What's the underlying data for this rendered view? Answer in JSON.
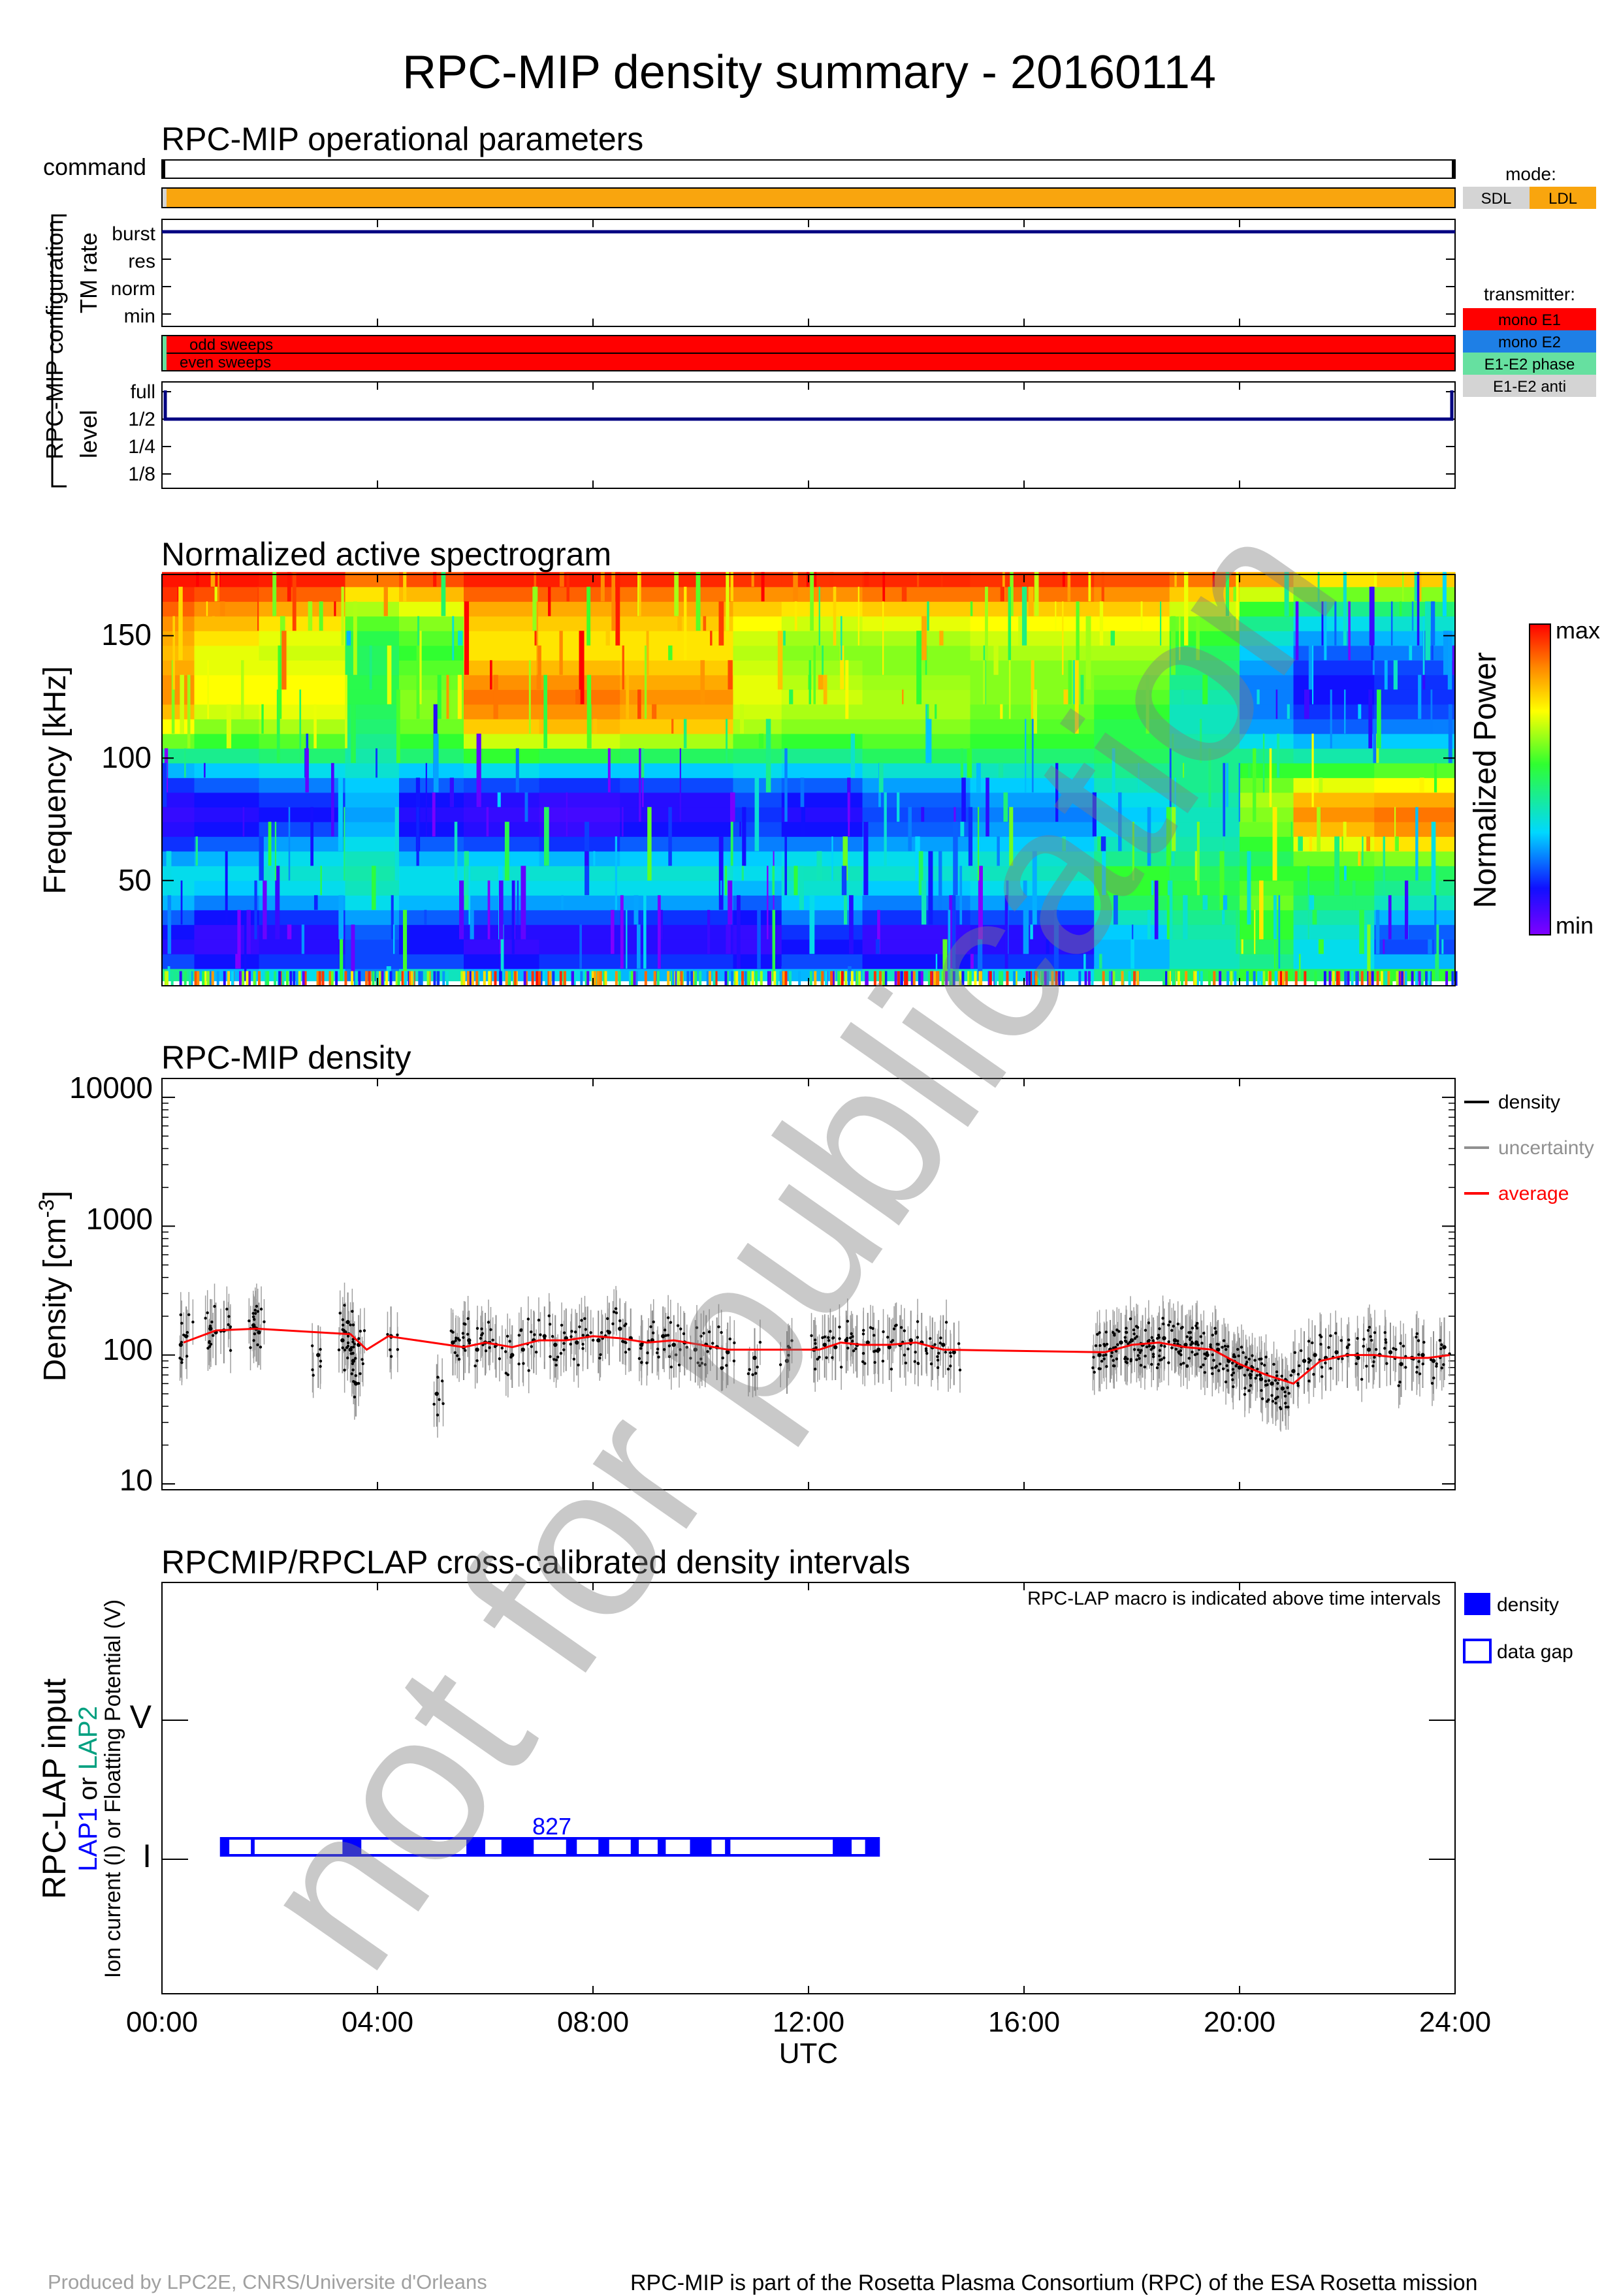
{
  "title": "RPC-MIP density summary - 20160114",
  "watermark": "not for publication",
  "colors": {
    "orange": "#F9A50E",
    "red": "#FF0000",
    "blue_e2": "#1E7FE6",
    "green_phase": "#66E0A0",
    "gray": "#D4D4D4",
    "navy": "#000080",
    "lap_blue": "#0000FF",
    "lap2_teal": "#00A080"
  },
  "operational": {
    "title": "RPC-MIP operational parameters",
    "command_label": "command",
    "config_label": "RPC-MIP configuration",
    "tm_rate_label": "TM rate",
    "level_label": "level",
    "tm_rate_ticks": [
      "burst",
      "res",
      "norm",
      "min"
    ],
    "tm_rate_value": "burst",
    "sweep_labels": [
      "odd sweeps",
      "even sweeps"
    ],
    "level_ticks": [
      "full",
      "1/2",
      "1/4",
      "1/8"
    ],
    "level_value": "1/2",
    "mode_legend": {
      "title": "mode:",
      "items": [
        {
          "label": "SDL",
          "color": "#D4D4D4"
        },
        {
          "label": "LDL",
          "color": "#F9A50E"
        }
      ]
    },
    "transmitter_legend": {
      "title": "transmitter:",
      "items": [
        {
          "label": "mono E1",
          "color": "#FF0000"
        },
        {
          "label": "mono E2",
          "color": "#1E7FE6"
        },
        {
          "label": "E1-E2 phase",
          "color": "#66E0A0"
        },
        {
          "label": "E1-E2 anti",
          "color": "#D4D4D4"
        }
      ]
    }
  },
  "spectrogram": {
    "title": "Normalized active spectrogram",
    "ylabel": "Frequency [kHz]",
    "yticks": [
      "150",
      "100",
      "50"
    ],
    "colorbar_label": "Normalized Power",
    "colorbar_max": "max",
    "colorbar_min": "min"
  },
  "density": {
    "title": "RPC-MIP density",
    "ylabel": "Density [cm",
    "ylabel_exp": "-3",
    "ylabel_end": "]",
    "yticks": [
      "10000",
      "1000",
      "100",
      "10"
    ],
    "legend": [
      {
        "label": "density",
        "color": "#000000"
      },
      {
        "label": "uncertainty",
        "color": "#909090"
      },
      {
        "label": "average",
        "color": "#FF0000"
      }
    ]
  },
  "lap": {
    "title": "RPCMIP/RPCLAP cross-calibrated density intervals",
    "note": "RPC-LAP macro is indicated above time intervals",
    "ylabel1": "RPC-LAP input",
    "ylabel2_lap1": "LAP1",
    "ylabel2_or": " or ",
    "ylabel2_lap2": "LAP2",
    "ylabel3": "Ion current (I) or Floatting Potential (V)",
    "yticks": [
      "V",
      "I"
    ],
    "macro": "827",
    "legend": [
      {
        "label": "density",
        "filled": true
      },
      {
        "label": "data gap",
        "filled": false
      }
    ]
  },
  "xaxis": {
    "ticks": [
      "00:00",
      "04:00",
      "08:00",
      "12:00",
      "16:00",
      "20:00",
      "24:00"
    ],
    "label": "UTC"
  },
  "chart_data": [
    {
      "type": "line",
      "title": "RPC-MIP operational parameters",
      "x_unit": "hours UTC",
      "xlim": [
        0,
        24
      ],
      "series": [
        {
          "name": "TM rate",
          "x": [
            0,
            24
          ],
          "y": [
            "burst",
            "burst"
          ]
        },
        {
          "name": "level",
          "x": [
            0,
            0.05,
            0.05,
            23.95,
            23.95,
            24
          ],
          "y": [
            "full",
            "full",
            "1/2",
            "1/2",
            "full",
            "full"
          ]
        }
      ],
      "mode": "LDL",
      "transmitter": "mono E1"
    },
    {
      "type": "heatmap",
      "title": "Normalized active spectrogram",
      "ylabel": "Frequency [kHz]",
      "xlim": [
        0,
        24
      ],
      "ylim": [
        7,
        175
      ],
      "x_band_edges_h": [
        0,
        0.6,
        1.8,
        3.4,
        4.4,
        5.6,
        7.0,
        8.5,
        10.6,
        11.5,
        13.0,
        15.0,
        17.3,
        18.7,
        20.0,
        21.0,
        22.5,
        24
      ],
      "freq_bins_khz": [
        12,
        17,
        23,
        29,
        35,
        41,
        47,
        53,
        59,
        65,
        71,
        77,
        83,
        89,
        95,
        101,
        107,
        113,
        119,
        125,
        131,
        137,
        143,
        149,
        155,
        161,
        167,
        173
      ],
      "normalized_power": [
        [
          0.45,
          0.3,
          0.35,
          0.25,
          0.4,
          0.3,
          0.35,
          0.3,
          0.35,
          0.3,
          0.4,
          0.35,
          0.45,
          0.5,
          0.55,
          0.5,
          0.55
        ],
        [
          0.2,
          0.15,
          0.18,
          0.2,
          0.2,
          0.15,
          0.18,
          0.18,
          0.15,
          0.2,
          0.15,
          0.18,
          0.3,
          0.4,
          0.45,
          0.35,
          0.3
        ],
        [
          0.12,
          0.1,
          0.12,
          0.2,
          0.15,
          0.1,
          0.12,
          0.12,
          0.1,
          0.15,
          0.1,
          0.12,
          0.3,
          0.4,
          0.5,
          0.35,
          0.2
        ],
        [
          0.15,
          0.1,
          0.12,
          0.22,
          0.15,
          0.12,
          0.12,
          0.12,
          0.1,
          0.18,
          0.1,
          0.12,
          0.32,
          0.42,
          0.55,
          0.38,
          0.22
        ],
        [
          0.22,
          0.15,
          0.18,
          0.28,
          0.22,
          0.2,
          0.2,
          0.18,
          0.15,
          0.25,
          0.18,
          0.2,
          0.4,
          0.45,
          0.55,
          0.42,
          0.3
        ],
        [
          0.3,
          0.25,
          0.28,
          0.35,
          0.3,
          0.28,
          0.28,
          0.28,
          0.22,
          0.32,
          0.25,
          0.28,
          0.5,
          0.5,
          0.6,
          0.48,
          0.4
        ],
        [
          0.35,
          0.32,
          0.35,
          0.4,
          0.35,
          0.35,
          0.35,
          0.35,
          0.3,
          0.38,
          0.32,
          0.35,
          0.55,
          0.52,
          0.58,
          0.52,
          0.45
        ],
        [
          0.35,
          0.35,
          0.38,
          0.42,
          0.35,
          0.38,
          0.38,
          0.38,
          0.35,
          0.4,
          0.38,
          0.4,
          0.55,
          0.5,
          0.55,
          0.55,
          0.5
        ],
        [
          0.28,
          0.3,
          0.35,
          0.4,
          0.3,
          0.32,
          0.3,
          0.32,
          0.32,
          0.35,
          0.35,
          0.38,
          0.45,
          0.45,
          0.5,
          0.6,
          0.62
        ],
        [
          0.18,
          0.22,
          0.28,
          0.35,
          0.22,
          0.2,
          0.18,
          0.22,
          0.25,
          0.25,
          0.28,
          0.32,
          0.4,
          0.42,
          0.55,
          0.7,
          0.75
        ],
        [
          0.12,
          0.15,
          0.2,
          0.3,
          0.15,
          0.12,
          0.1,
          0.15,
          0.2,
          0.15,
          0.22,
          0.28,
          0.35,
          0.4,
          0.6,
          0.8,
          0.85
        ],
        [
          0.1,
          0.12,
          0.15,
          0.28,
          0.12,
          0.1,
          0.08,
          0.12,
          0.18,
          0.12,
          0.2,
          0.25,
          0.32,
          0.4,
          0.62,
          0.85,
          0.88
        ],
        [
          0.12,
          0.15,
          0.18,
          0.3,
          0.15,
          0.12,
          0.1,
          0.12,
          0.2,
          0.15,
          0.22,
          0.28,
          0.35,
          0.42,
          0.65,
          0.8,
          0.82
        ],
        [
          0.18,
          0.22,
          0.25,
          0.32,
          0.22,
          0.2,
          0.18,
          0.2,
          0.25,
          0.22,
          0.28,
          0.32,
          0.4,
          0.45,
          0.6,
          0.7,
          0.72
        ],
        [
          0.3,
          0.32,
          0.35,
          0.38,
          0.32,
          0.35,
          0.32,
          0.32,
          0.35,
          0.32,
          0.38,
          0.4,
          0.45,
          0.45,
          0.55,
          0.55,
          0.58
        ],
        [
          0.45,
          0.45,
          0.48,
          0.42,
          0.48,
          0.55,
          0.52,
          0.5,
          0.48,
          0.45,
          0.5,
          0.48,
          0.5,
          0.45,
          0.45,
          0.42,
          0.45
        ],
        [
          0.6,
          0.55,
          0.58,
          0.45,
          0.55,
          0.68,
          0.68,
          0.65,
          0.58,
          0.55,
          0.58,
          0.55,
          0.52,
          0.42,
          0.35,
          0.3,
          0.32
        ],
        [
          0.72,
          0.62,
          0.65,
          0.48,
          0.6,
          0.78,
          0.8,
          0.78,
          0.65,
          0.62,
          0.62,
          0.58,
          0.52,
          0.4,
          0.28,
          0.22,
          0.25
        ],
        [
          0.8,
          0.68,
          0.7,
          0.5,
          0.62,
          0.85,
          0.85,
          0.82,
          0.68,
          0.65,
          0.65,
          0.6,
          0.55,
          0.4,
          0.25,
          0.18,
          0.2
        ],
        [
          0.85,
          0.72,
          0.72,
          0.52,
          0.62,
          0.88,
          0.88,
          0.85,
          0.7,
          0.68,
          0.65,
          0.62,
          0.58,
          0.42,
          0.25,
          0.15,
          0.18
        ],
        [
          0.85,
          0.72,
          0.72,
          0.52,
          0.6,
          0.85,
          0.85,
          0.82,
          0.7,
          0.66,
          0.64,
          0.62,
          0.6,
          0.45,
          0.25,
          0.15,
          0.18
        ],
        [
          0.82,
          0.7,
          0.7,
          0.5,
          0.58,
          0.8,
          0.8,
          0.78,
          0.68,
          0.64,
          0.62,
          0.62,
          0.62,
          0.48,
          0.28,
          0.18,
          0.2
        ],
        [
          0.8,
          0.7,
          0.68,
          0.5,
          0.55,
          0.75,
          0.75,
          0.75,
          0.66,
          0.62,
          0.62,
          0.65,
          0.65,
          0.5,
          0.32,
          0.22,
          0.25
        ],
        [
          0.82,
          0.75,
          0.7,
          0.52,
          0.58,
          0.75,
          0.75,
          0.75,
          0.68,
          0.64,
          0.65,
          0.68,
          0.68,
          0.55,
          0.38,
          0.28,
          0.3
        ],
        [
          0.85,
          0.8,
          0.75,
          0.58,
          0.62,
          0.78,
          0.78,
          0.78,
          0.72,
          0.68,
          0.7,
          0.72,
          0.72,
          0.6,
          0.45,
          0.35,
          0.38
        ],
        [
          0.9,
          0.85,
          0.82,
          0.65,
          0.7,
          0.82,
          0.82,
          0.82,
          0.78,
          0.75,
          0.78,
          0.78,
          0.78,
          0.68,
          0.55,
          0.45,
          0.48
        ],
        [
          0.95,
          0.92,
          0.9,
          0.75,
          0.8,
          0.9,
          0.9,
          0.88,
          0.85,
          0.85,
          0.88,
          0.88,
          0.85,
          0.78,
          0.68,
          0.6,
          0.62
        ],
        [
          0.98,
          0.98,
          0.97,
          0.88,
          0.92,
          0.97,
          0.97,
          0.96,
          0.95,
          0.95,
          0.96,
          0.95,
          0.92,
          0.88,
          0.82,
          0.75,
          0.78
        ]
      ]
    },
    {
      "type": "scatter",
      "title": "RPC-MIP density",
      "ylabel": "Density [cm-3]",
      "y_scale": "log",
      "xlim": [
        0,
        24
      ],
      "ylim": [
        9,
        14000
      ],
      "legend_position": "right",
      "series": [
        {
          "name": "density",
          "x": [
            0.35,
            0.45,
            0.9,
            1.0,
            1.15,
            1.7,
            1.75,
            1.8,
            2.9,
            3.35,
            3.4,
            3.45,
            3.5,
            3.55,
            3.6,
            3.65,
            4.25,
            5.1,
            5.4,
            5.6,
            5.7,
            5.85,
            6.0,
            6.2,
            6.5,
            6.7,
            6.9,
            7.1,
            7.3,
            7.5,
            7.7,
            7.9,
            8.1,
            8.3,
            8.5,
            8.7,
            8.9,
            9.1,
            9.3,
            9.5,
            9.7,
            9.9,
            10.1,
            10.3,
            10.5,
            11.0,
            11.6,
            12.1,
            12.3,
            12.5,
            12.7,
            12.9,
            13.1,
            13.3,
            13.5,
            13.7,
            13.9,
            14.1,
            14.3,
            14.5,
            14.7,
            17.4,
            17.6,
            17.8,
            18.0,
            18.2,
            18.4,
            18.6,
            18.8,
            19.0,
            19.2,
            19.4,
            19.6,
            19.8,
            20.0,
            20.2,
            20.4,
            20.6,
            20.8,
            21.0,
            21.2,
            21.4,
            21.6,
            21.8,
            22.0,
            22.2,
            22.4,
            22.6,
            22.8,
            23.0,
            23.2,
            23.4,
            23.6,
            23.8
          ],
          "y": [
            120,
            140,
            160,
            150,
            155,
            170,
            160,
            150,
            100,
            130,
            150,
            180,
            110,
            90,
            60,
            120,
            140,
            50,
            125,
            115,
            130,
            110,
            125,
            120,
            100,
            110,
            130,
            140,
            120,
            135,
            125,
            140,
            130,
            150,
            160,
            135,
            120,
            130,
            140,
            120,
            125,
            110,
            120,
            115,
            105,
            95,
            90,
            110,
            120,
            115,
            130,
            120,
            125,
            110,
            115,
            120,
            130,
            125,
            115,
            120,
            105,
            100,
            110,
            125,
            130,
            120,
            115,
            135,
            130,
            120,
            125,
            100,
            110,
            90,
            80,
            70,
            65,
            60,
            55,
            75,
            90,
            100,
            95,
            105,
            100,
            95,
            110,
            100,
            105,
            85,
            95,
            100,
            90,
            115
          ]
        },
        {
          "name": "average",
          "x": [
            0.4,
            1.0,
            1.75,
            3.5,
            3.8,
            4.2,
            5.6,
            6.0,
            6.5,
            7.0,
            7.5,
            8.0,
            8.5,
            9.0,
            9.5,
            10.0,
            10.5,
            12.2,
            12.6,
            13.0,
            13.5,
            14.0,
            14.5,
            17.5,
            18.0,
            18.5,
            19.0,
            19.5,
            20.0,
            20.5,
            21.0,
            21.5,
            22.0,
            22.5,
            23.0,
            23.5,
            23.9
          ],
          "y": [
            125,
            155,
            160,
            145,
            110,
            140,
            115,
            125,
            115,
            130,
            130,
            140,
            135,
            125,
            130,
            120,
            110,
            110,
            125,
            120,
            120,
            125,
            110,
            105,
            120,
            125,
            115,
            110,
            85,
            70,
            60,
            90,
            100,
            100,
            95,
            95,
            100
          ]
        }
      ]
    },
    {
      "type": "bar",
      "title": "RPCMIP/RPCLAP cross-calibrated density intervals",
      "ylabel": "RPC-LAP input",
      "xlim": [
        0,
        24
      ],
      "input": "I",
      "macro": "827",
      "interval_h": [
        1.1,
        13.3
      ],
      "density_segments_h": [
        [
          1.1,
          1.25
        ],
        [
          1.65,
          1.72
        ],
        [
          3.35,
          3.7
        ],
        [
          5.65,
          6.0
        ],
        [
          6.3,
          6.9
        ],
        [
          7.5,
          7.7
        ],
        [
          8.1,
          8.3
        ],
        [
          8.7,
          8.85
        ],
        [
          9.2,
          9.35
        ],
        [
          9.8,
          10.2
        ],
        [
          10.45,
          10.55
        ],
        [
          12.45,
          12.8
        ],
        [
          13.05,
          13.3
        ]
      ]
    }
  ]
}
